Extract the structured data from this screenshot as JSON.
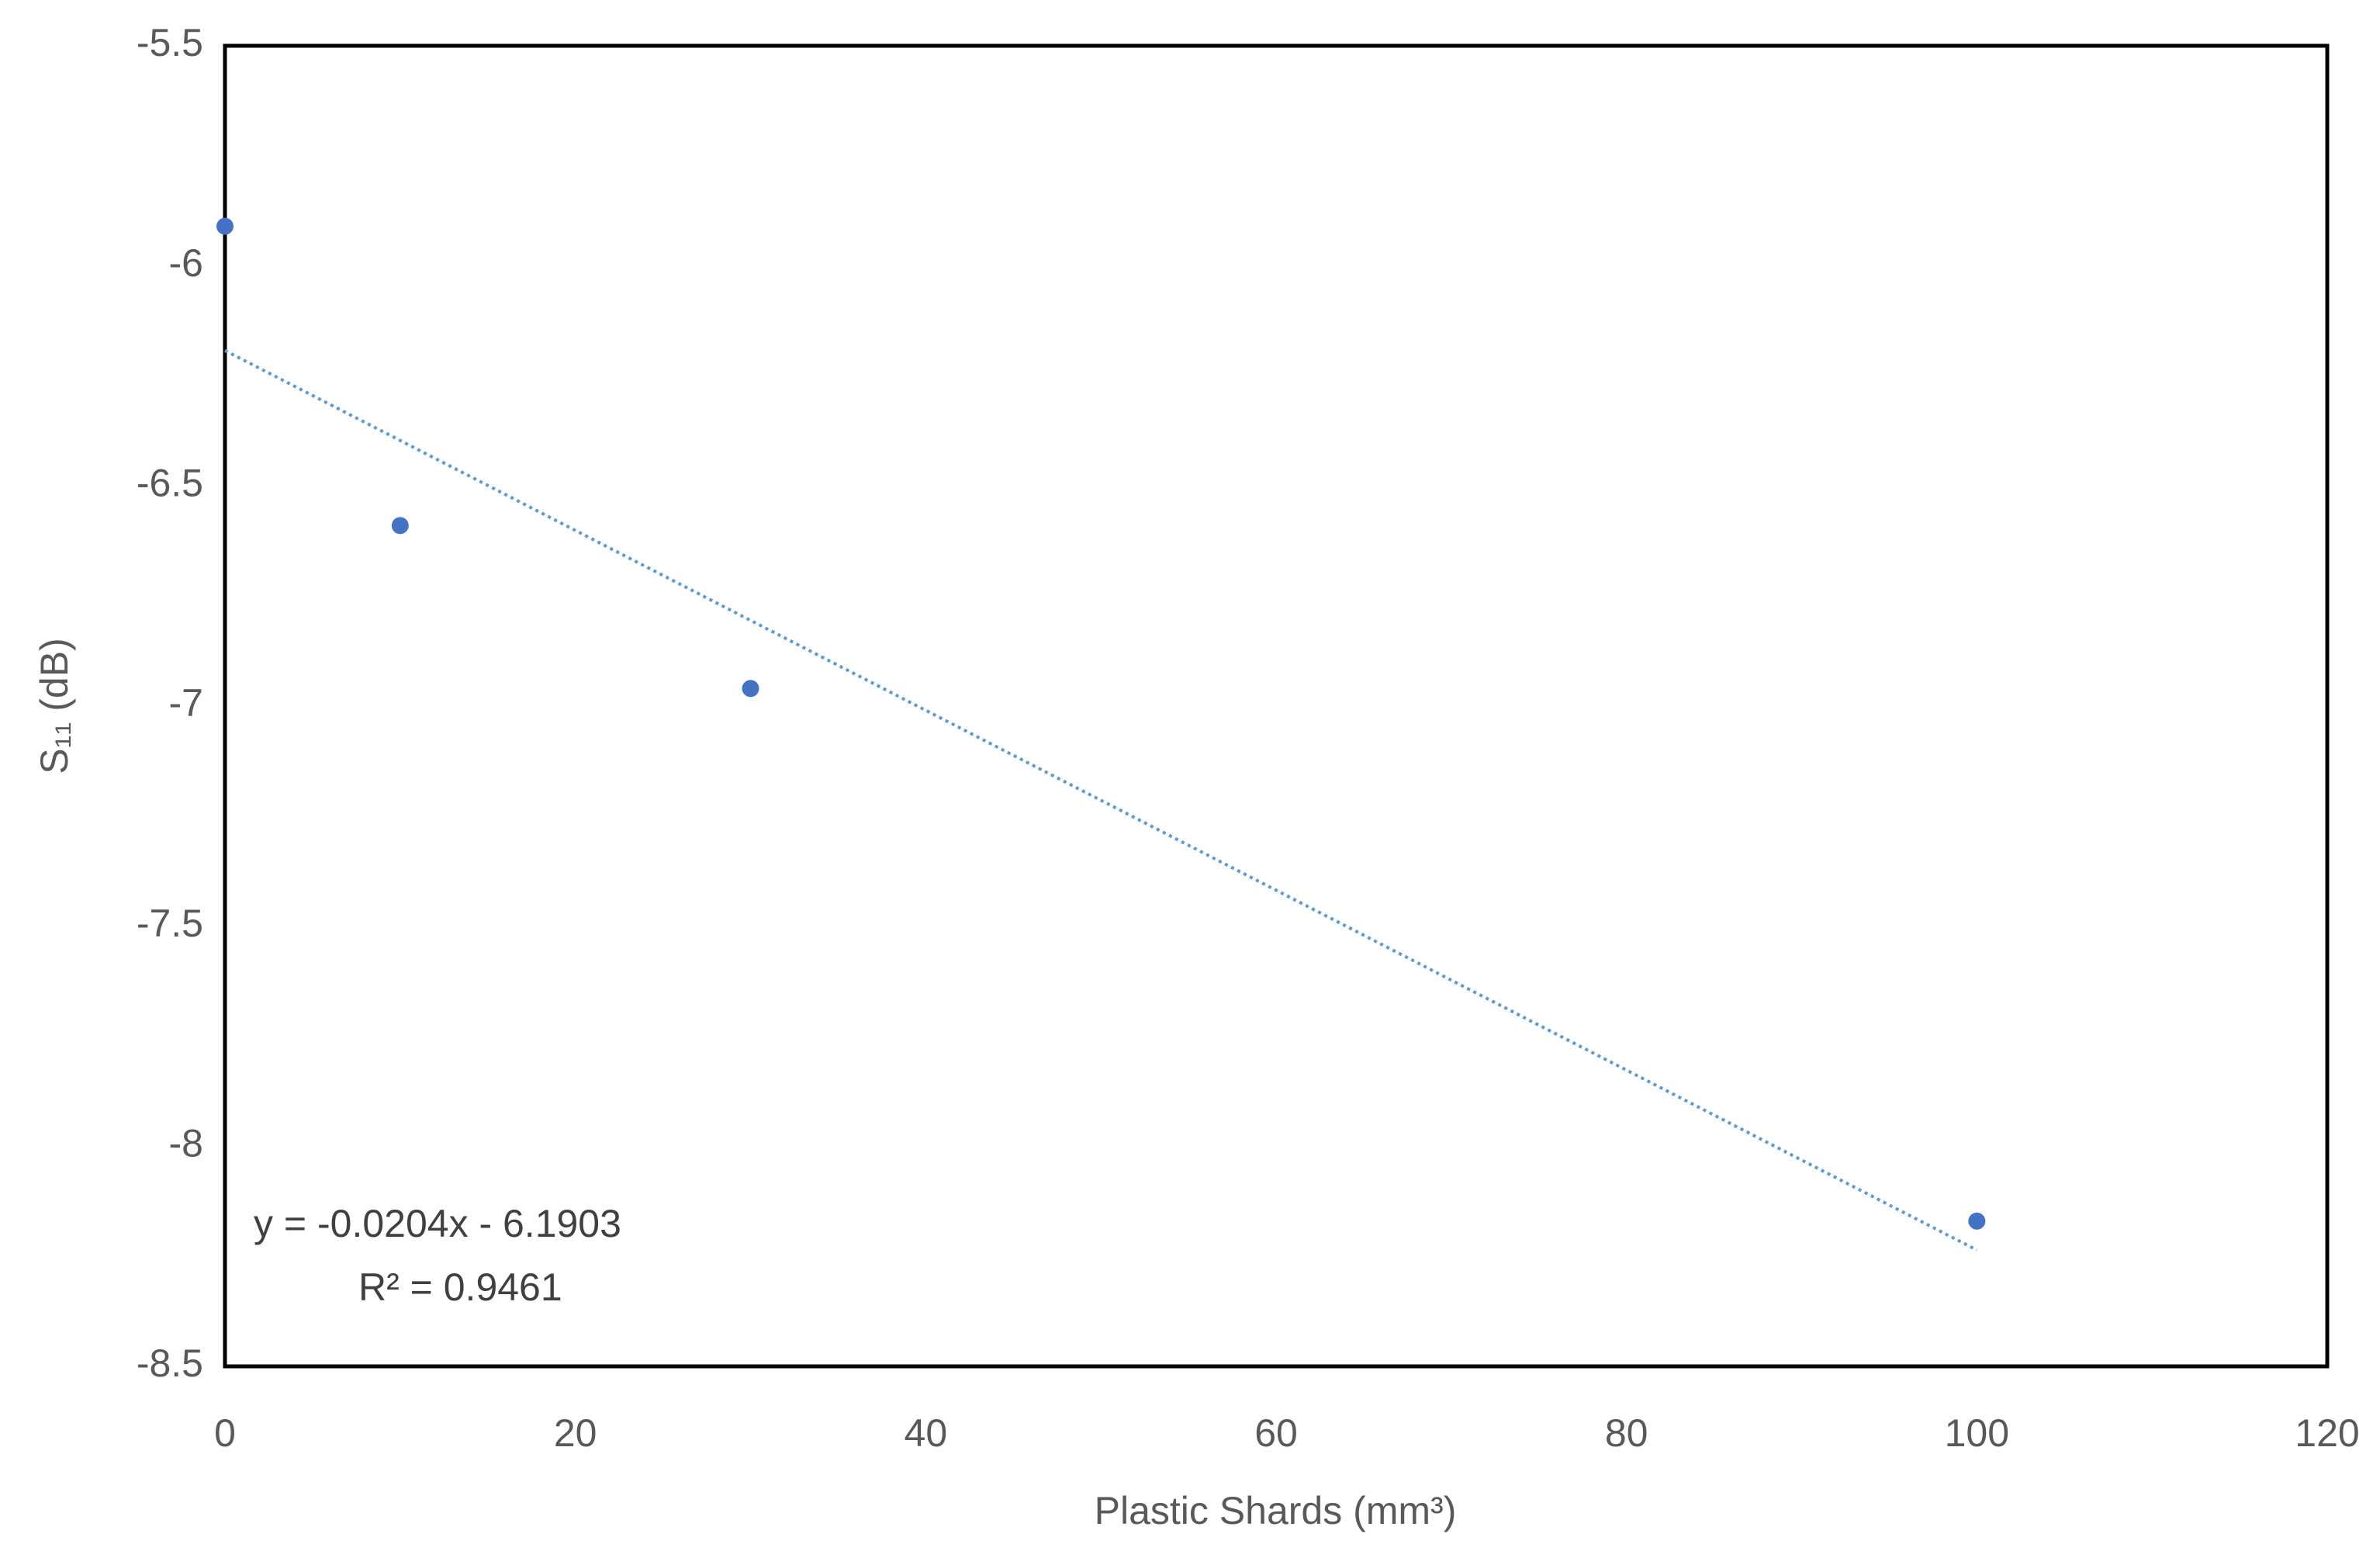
{
  "chart_data": {
    "type": "scatter",
    "x_label": "Plastic Shards (mm³)",
    "y_label": "S₁₁ (dB)",
    "annotations": [
      "y = -0.0204x - 6.1903",
      "R² = 0.9461"
    ],
    "series": [
      {
        "color": "#4472c4",
        "x": [
          0,
          10,
          30,
          100
        ],
        "values": [
          -5.91,
          -6.59,
          -6.96,
          -8.17
        ]
      }
    ],
    "trendline": "linear",
    "trendline_color": "#5b9bd5",
    "xlim": [
      0,
      120
    ],
    "xticks": [
      0,
      20,
      40,
      60,
      80,
      100,
      120
    ],
    "ylim": [
      -8.5,
      -5.5
    ],
    "yticks": [
      -5.5,
      -6,
      -6.5,
      -7,
      -7.5,
      -8,
      -8.5
    ],
    "grid": false
  }
}
